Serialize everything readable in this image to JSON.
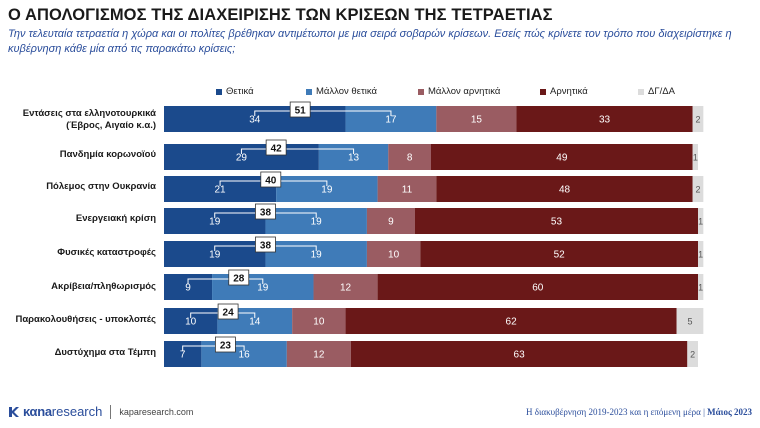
{
  "header": {
    "title": "Ο ΑΠΟΛΟΓΙΣΜΟΣ ΤΗΣ ΔΙΑΧΕΙΡΙΣΗΣ ΤΩΝ ΚΡΙΣΕΩΝ ΤΗΣ ΤΕΤΡΑΕΤΙΑΣ",
    "subtitle": "Την τελευταία τετραετία η χώρα και οι πολίτες βρέθηκαν αντιμέτωποι με μια σειρά σοβαρών κρίσεων. Εσείς πώς κρίνετε τον τρόπο που διαχειρίστηκε η κυβέρνηση κάθε μία από τις παρακάτω κρίσεις;"
  },
  "chart_data": {
    "type": "bar",
    "orientation": "horizontal",
    "stacked": true,
    "xlim": [
      0,
      100
    ],
    "categories": [
      "Εντάσεις στα ελληνοτουρκικά (Έβρος, Αιγαίο κ.α.)",
      "Πανδημία κορωνοϊού",
      "Πόλεμος στην Ουκρανία",
      "Ενεργειακή κρίση",
      "Φυσικές καταστροφές",
      "Ακρίβεια/πληθωρισμός",
      "Παρακολουθήσεις - υποκλοπές",
      "Δυστύχημα στα Τέμπη"
    ],
    "series": [
      {
        "name": "Θετικά",
        "color": "#1b4a8c",
        "values": [
          34,
          29,
          21,
          19,
          19,
          9,
          10,
          7
        ]
      },
      {
        "name": "Μάλλον θετικά",
        "color": "#3f7bb8",
        "values": [
          17,
          13,
          19,
          19,
          19,
          19,
          14,
          16
        ]
      },
      {
        "name": "Μάλλον αρνητικά",
        "color": "#9a5c62",
        "values": [
          15,
          8,
          11,
          9,
          10,
          12,
          10,
          12
        ]
      },
      {
        "name": "Αρνητικά",
        "color": "#6a1818",
        "values": [
          33,
          49,
          48,
          53,
          52,
          60,
          62,
          63
        ]
      },
      {
        "name": "ΔΓ/ΔΑ",
        "color": "#dcdcdc",
        "values": [
          2,
          1,
          2,
          1,
          1,
          1,
          5,
          2
        ]
      }
    ],
    "totals_positive": [
      51,
      42,
      40,
      38,
      38,
      28,
      24,
      23
    ]
  },
  "footer": {
    "logo_kana": "καna",
    "logo_research": "research",
    "url": "kaparesearch.com",
    "note": "Η διακυβέρνηση 2019-2023 και η επόμενη μέρα",
    "date": "Μάιος 2023"
  }
}
